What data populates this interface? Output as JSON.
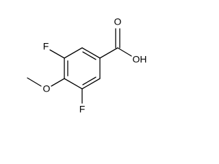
{
  "atoms": [
    {
      "label": "F"
    },
    {
      "label": "O"
    },
    {
      "label": "F"
    },
    {
      "label": "O"
    },
    {
      "label": "OH"
    }
  ]
}
